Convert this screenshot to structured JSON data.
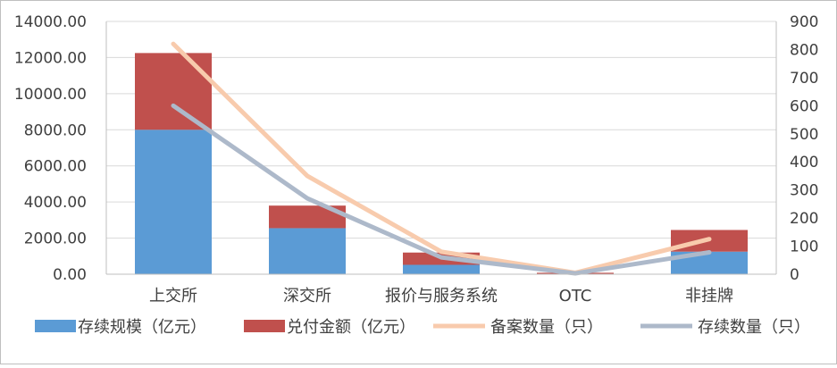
{
  "chart_data": {
    "type": "bar",
    "categories": [
      "上交所",
      "深交所",
      "报价与服务系统",
      "OTC",
      "非挂牌"
    ],
    "bar_series": [
      {
        "name": "存续规模（亿元）",
        "color": "#5b9bd5",
        "values": [
          8000,
          2550,
          520,
          20,
          1250
        ]
      },
      {
        "name": "兑付金额（亿元）",
        "color": "#c0504d",
        "values": [
          4250,
          1250,
          680,
          60,
          1200
        ]
      }
    ],
    "line_series": [
      {
        "name": "备案数量（只）",
        "color": "#f8cbad",
        "values": [
          820,
          350,
          80,
          5,
          125
        ]
      },
      {
        "name": "存续数量（只）",
        "color": "#adb9ca",
        "values": [
          600,
          270,
          60,
          3,
          78
        ]
      }
    ],
    "left_axis": {
      "ylim": [
        0,
        14000
      ],
      "ticks": [
        "0.00",
        "2000.00",
        "4000.00",
        "6000.00",
        "8000.00",
        "10000.00",
        "12000.00",
        "14000.00"
      ]
    },
    "right_axis": {
      "ylim": [
        0,
        900
      ],
      "ticks": [
        "0",
        "100",
        "200",
        "300",
        "400",
        "500",
        "600",
        "700",
        "800",
        "900"
      ]
    },
    "grid": true,
    "legend_position": "bottom"
  }
}
